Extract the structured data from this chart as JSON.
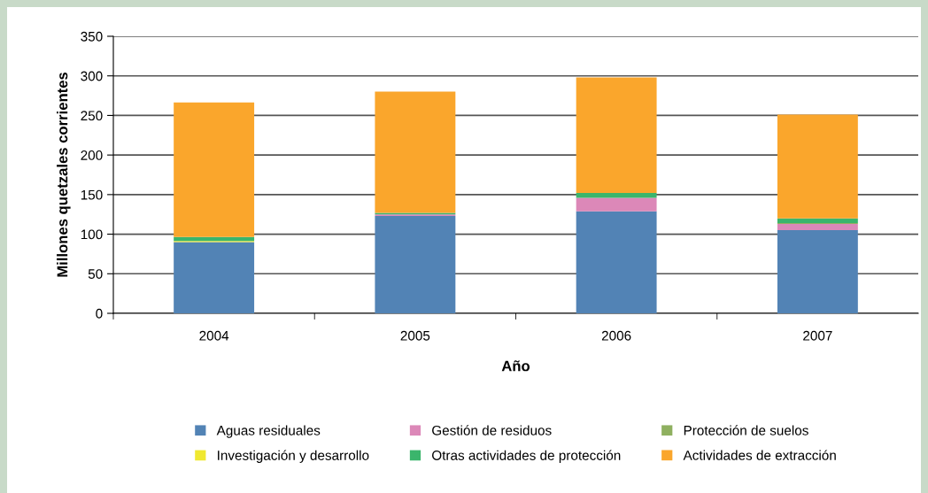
{
  "chart_data": {
    "type": "bar",
    "stacked": true,
    "xlabel": "Año",
    "ylabel": "Millones quetzales corrientes",
    "categories": [
      "2004",
      "2005",
      "2006",
      "2007"
    ],
    "series": [
      {
        "name": "Aguas residuales",
        "color": "#5283b5",
        "values": [
          90,
          123,
          129,
          105
        ]
      },
      {
        "name": "Gestión de residuos",
        "color": "#dc88b8",
        "values": [
          0,
          2,
          17,
          8
        ]
      },
      {
        "name": "Protección de suelos",
        "color": "#8fb060",
        "values": [
          0,
          0,
          0,
          1
        ]
      },
      {
        "name": "Investigación y desarrollo",
        "color": "#f0e830",
        "values": [
          1.5,
          0,
          0,
          0
        ]
      },
      {
        "name": "Otras actividades de protección",
        "color": "#3bb56c",
        "values": [
          5,
          2,
          6,
          6
        ]
      },
      {
        "name": "Actividades de extracción",
        "color": "#faa62c",
        "values": [
          170,
          153,
          146,
          131
        ]
      }
    ],
    "ylim": [
      0,
      350
    ],
    "yticks": [
      0,
      50,
      100,
      150,
      200,
      250,
      300,
      350
    ],
    "grid": "y",
    "legend": "bottom"
  }
}
